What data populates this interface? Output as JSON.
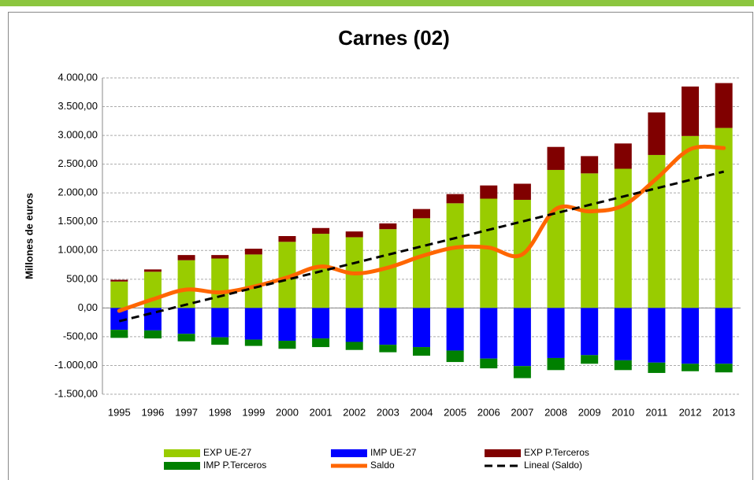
{
  "chart_data": {
    "type": "bar",
    "title": "Carnes (02)",
    "y_label": "Millones de euros",
    "categories": [
      "1995",
      "1996",
      "1997",
      "1998",
      "1999",
      "2000",
      "2001",
      "2002",
      "2003",
      "2004",
      "2005",
      "2006",
      "2007",
      "2008",
      "2009",
      "2010",
      "2011",
      "2012",
      "2013"
    ],
    "series": [
      {
        "name": "EXP UE-27",
        "color": "#99cc00",
        "kind": "bar",
        "values": [
          460,
          630,
          830,
          860,
          930,
          1150,
          1290,
          1230,
          1370,
          1560,
          1820,
          1900,
          1880,
          2400,
          2340,
          2420,
          2660,
          2990,
          3130
        ]
      },
      {
        "name": "IMP UE-27",
        "color": "#0000ff",
        "kind": "bar",
        "values": [
          -380,
          -390,
          -450,
          -510,
          -550,
          -570,
          -530,
          -590,
          -640,
          -680,
          -740,
          -880,
          -1010,
          -870,
          -820,
          -910,
          -950,
          -970,
          -970
        ]
      },
      {
        "name": "EXP P.Terceros",
        "color": "#800000",
        "kind": "bar",
        "values": [
          30,
          40,
          90,
          60,
          100,
          100,
          100,
          100,
          100,
          160,
          160,
          230,
          280,
          400,
          300,
          440,
          740,
          860,
          780
        ]
      },
      {
        "name": "IMP P.Terceros",
        "color": "#008000",
        "kind": "bar",
        "values": [
          -140,
          -140,
          -130,
          -130,
          -110,
          -140,
          -150,
          -140,
          -130,
          -150,
          -200,
          -170,
          -210,
          -210,
          -150,
          -170,
          -180,
          -130,
          -150
        ]
      },
      {
        "name": "Saldo",
        "color": "#ff6600",
        "kind": "line",
        "values": [
          -50,
          150,
          320,
          270,
          370,
          530,
          720,
          600,
          700,
          900,
          1050,
          1050,
          930,
          1720,
          1680,
          1780,
          2250,
          2760,
          2780
        ]
      },
      {
        "name": "Lineal (Saldo)",
        "color": "#000000",
        "kind": "dashed",
        "values": [
          -230,
          -86,
          59,
          203,
          348,
          492,
          637,
          781,
          926,
          1070,
          1214,
          1359,
          1503,
          1648,
          1792,
          1937,
          2081,
          2226,
          2370
        ]
      }
    ],
    "ylim": [
      -1500,
      4000
    ],
    "yticks": [
      {
        "value": -1500,
        "label": "-1.500,00"
      },
      {
        "value": -1000,
        "label": "-1.000,00"
      },
      {
        "value": -500,
        "label": "-500,00"
      },
      {
        "value": 0,
        "label": "0,00"
      },
      {
        "value": 500,
        "label": "500,00"
      },
      {
        "value": 1000,
        "label": "1.000,00"
      },
      {
        "value": 1500,
        "label": "1.500,00"
      },
      {
        "value": 2000,
        "label": "2.000,00"
      },
      {
        "value": 2500,
        "label": "2.500,00"
      },
      {
        "value": 3000,
        "label": "3.000,00"
      },
      {
        "value": 3500,
        "label": "3.500,00"
      },
      {
        "value": 4000,
        "label": "4.000,00"
      }
    ],
    "grid": true
  }
}
